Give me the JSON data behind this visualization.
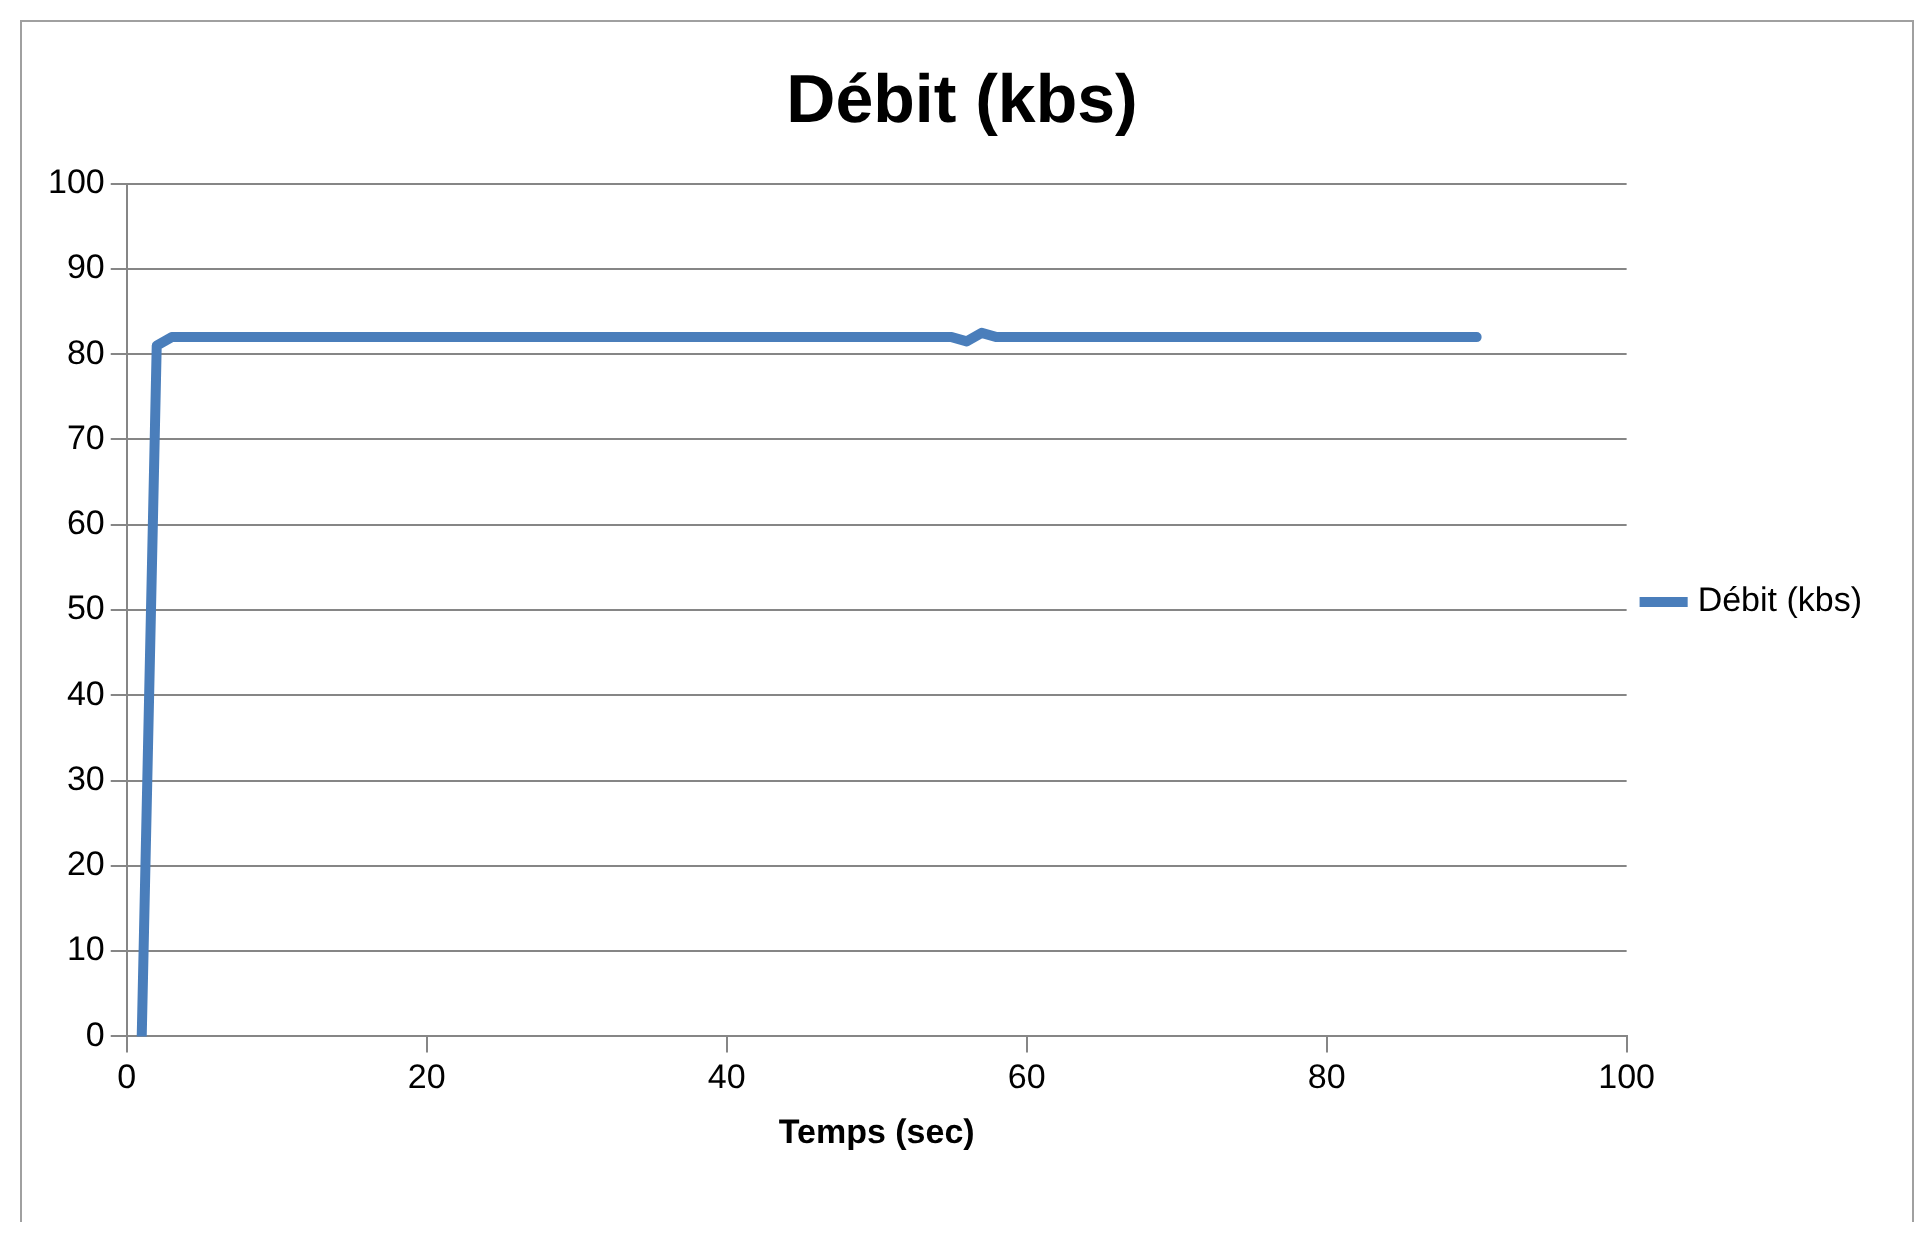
{
  "chart_data": {
    "type": "line",
    "title": "Débit (kbs)",
    "xlabel": "Temps (sec)",
    "x": [
      1,
      2,
      3,
      55,
      56,
      57,
      58,
      90
    ],
    "series": [
      {
        "name": "Débit (kbs)",
        "color": "#4a7ebb",
        "values": [
          0,
          81,
          82,
          82,
          81.5,
          82.5,
          82,
          82
        ]
      }
    ],
    "xlim": [
      0,
      100
    ],
    "xticks": [
      0,
      20,
      40,
      60,
      80,
      100
    ],
    "ylim": [
      0,
      100
    ],
    "yticks": [
      0,
      10,
      20,
      30,
      40,
      50,
      60,
      70,
      80,
      90,
      100
    ],
    "grid": "y",
    "legend": "right",
    "marker": "none",
    "line_style": "solid"
  }
}
